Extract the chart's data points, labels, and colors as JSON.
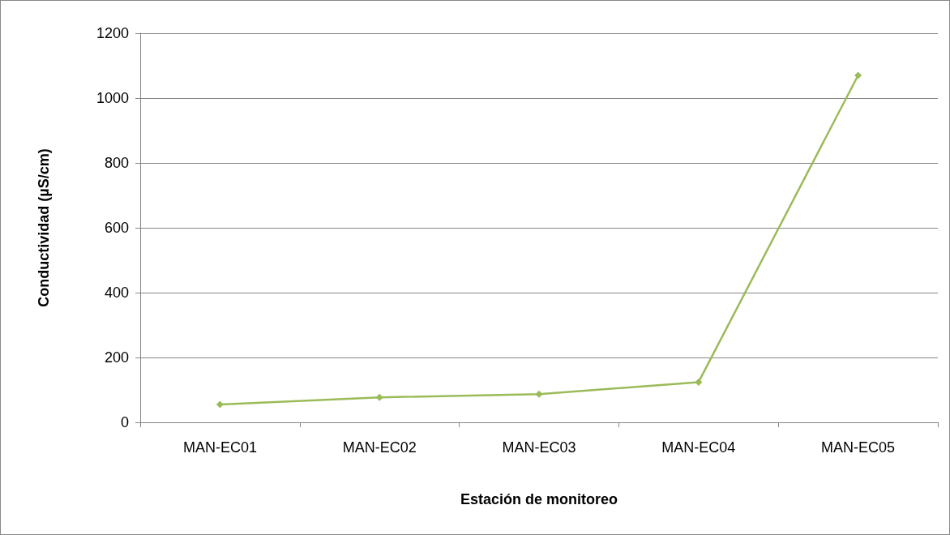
{
  "chart_data": {
    "type": "line",
    "xlabel": "Estación de monitoreo",
    "ylabel": "Conductividad (µS/cm)",
    "categories": [
      "MAN-EC01",
      "MAN-EC02",
      "MAN-EC03",
      "MAN-EC04",
      "MAN-EC05"
    ],
    "series": [
      {
        "color": "#9bbb59",
        "values": [
          55,
          77,
          87,
          124,
          1070
        ]
      }
    ],
    "ylim": [
      0,
      1200
    ],
    "yticks": [
      0,
      200,
      400,
      600,
      800,
      1000,
      1200
    ],
    "grid": "y",
    "marker": "diamond",
    "line_style": "solid"
  }
}
